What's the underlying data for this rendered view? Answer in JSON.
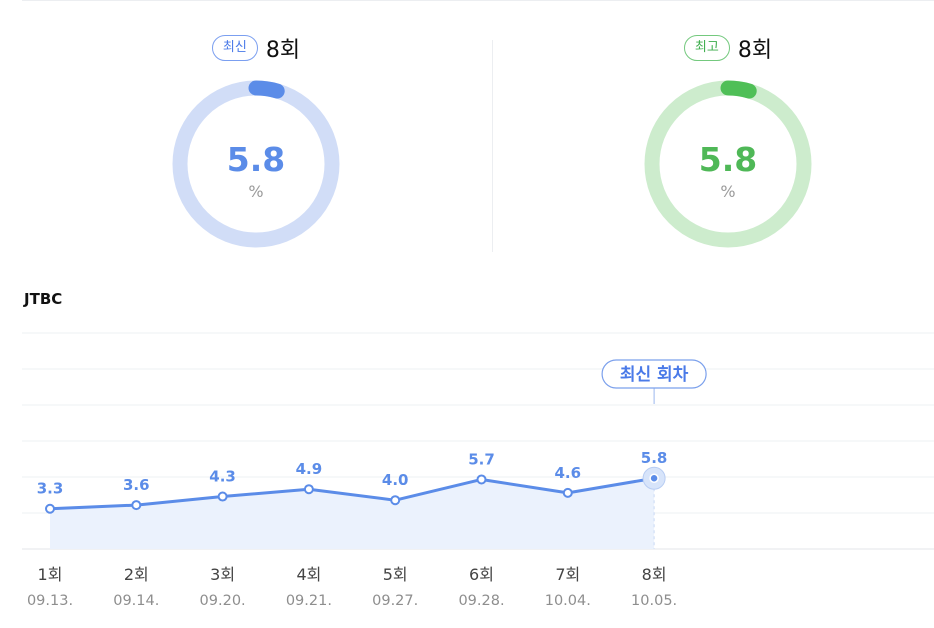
{
  "latest": {
    "badge": "최신",
    "episode": "8회",
    "value": "5.8",
    "unit": "%",
    "accent": "#5b8ce8",
    "track": "#d1ddf7",
    "level_fraction": 0.045
  },
  "best": {
    "badge": "최고",
    "episode": "8회",
    "value": "5.8",
    "unit": "%",
    "accent": "#4fbf57",
    "track": "#cdeccd",
    "level_fraction": 0.045
  },
  "network": "JTBC",
  "chart_data": {
    "type": "area",
    "title": "",
    "xlabel": "",
    "ylabel": "",
    "categories": [
      "1회",
      "2회",
      "3회",
      "4회",
      "5회",
      "6회",
      "7회",
      "8회"
    ],
    "dates": [
      "09.13.",
      "09.14.",
      "09.20.",
      "09.21.",
      "09.27.",
      "09.28.",
      "10.04.",
      "10.05."
    ],
    "series": [
      {
        "values": [
          3.3,
          3.6,
          4.3,
          4.9,
          4.0,
          5.7,
          4.6,
          5.8
        ]
      }
    ],
    "data_labels": [
      "3.3",
      "3.6",
      "4.3",
      "4.9",
      "4.0",
      "5.7",
      "4.6",
      "5.8"
    ],
    "ylim": [
      0,
      30
    ],
    "grid": true,
    "line_color": "#5b8ce8",
    "fill_color": "#ebf2fd",
    "highlight_label": "최신 회차",
    "highlight_index": 7
  }
}
